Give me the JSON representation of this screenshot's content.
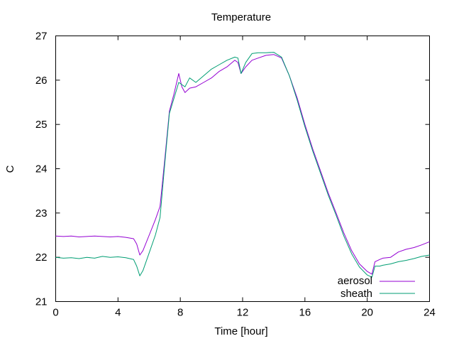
{
  "chart_data": {
    "type": "line",
    "title": "Temperature",
    "xlabel": "Time [hour]",
    "ylabel": "C",
    "xlim": [
      0,
      24
    ],
    "ylim": [
      21,
      27
    ],
    "xticks": [
      0,
      4,
      8,
      12,
      16,
      20,
      24
    ],
    "yticks": [
      21,
      22,
      23,
      24,
      25,
      26,
      27
    ],
    "grid": false,
    "legend_position": "bottom-right",
    "series": [
      {
        "name": "aerosol",
        "color": "#9400d3",
        "x": [
          0,
          0.5,
          1,
          1.5,
          2,
          2.5,
          3,
          3.5,
          4,
          4.5,
          5,
          5.2,
          5.4,
          5.6,
          6,
          6.4,
          6.7,
          7,
          7.3,
          7.6,
          7.9,
          8.1,
          8.3,
          8.6,
          9,
          9.5,
          10,
          10.5,
          11,
          11.5,
          11.7,
          11.9,
          12.2,
          12.6,
          13,
          13.5,
          14,
          14.5,
          15,
          15.5,
          16,
          16.5,
          17,
          17.5,
          18,
          18.5,
          19,
          19.5,
          20,
          20.3,
          20.5,
          20.8,
          21,
          21.5,
          22,
          22.5,
          23,
          23.5,
          24
        ],
        "y": [
          22.48,
          22.47,
          22.48,
          22.46,
          22.47,
          22.48,
          22.47,
          22.46,
          22.47,
          22.45,
          22.42,
          22.3,
          22.05,
          22.15,
          22.5,
          22.85,
          23.15,
          24.2,
          25.3,
          25.7,
          26.15,
          25.85,
          25.72,
          25.82,
          25.85,
          25.95,
          26.05,
          26.2,
          26.3,
          26.45,
          26.4,
          26.15,
          26.3,
          26.45,
          26.5,
          26.56,
          26.58,
          26.5,
          26.1,
          25.6,
          25.0,
          24.45,
          23.95,
          23.45,
          23.0,
          22.55,
          22.15,
          21.85,
          21.68,
          21.62,
          21.9,
          21.95,
          21.98,
          22.0,
          22.12,
          22.18,
          22.22,
          22.28,
          22.35
        ]
      },
      {
        "name": "sheath",
        "color": "#009e73",
        "x": [
          0,
          0.5,
          1,
          1.5,
          2,
          2.5,
          3,
          3.5,
          4,
          4.5,
          5,
          5.2,
          5.4,
          5.6,
          6,
          6.4,
          6.7,
          7,
          7.3,
          7.6,
          7.9,
          8.1,
          8.3,
          8.6,
          9,
          9.5,
          10,
          10.5,
          11,
          11.5,
          11.7,
          11.9,
          12.2,
          12.6,
          13,
          13.5,
          14,
          14.5,
          15,
          15.5,
          16,
          16.5,
          17,
          17.5,
          18,
          18.5,
          19,
          19.5,
          20,
          20.3,
          20.5,
          20.8,
          21,
          21.5,
          22,
          22.5,
          23,
          23.5,
          24
        ],
        "y": [
          22.0,
          21.98,
          21.99,
          21.97,
          22.0,
          21.98,
          22.02,
          22.0,
          22.01,
          21.99,
          21.95,
          21.8,
          21.58,
          21.7,
          22.1,
          22.5,
          22.9,
          24.1,
          25.25,
          25.6,
          25.95,
          25.9,
          25.85,
          26.05,
          25.95,
          26.1,
          26.25,
          26.35,
          26.45,
          26.52,
          26.5,
          26.15,
          26.4,
          26.6,
          26.62,
          26.62,
          26.63,
          26.52,
          26.1,
          25.55,
          24.95,
          24.4,
          23.9,
          23.4,
          22.95,
          22.48,
          22.08,
          21.78,
          21.6,
          21.55,
          21.8,
          21.8,
          21.82,
          21.85,
          21.9,
          21.93,
          21.97,
          22.02,
          22.05
        ]
      }
    ]
  }
}
